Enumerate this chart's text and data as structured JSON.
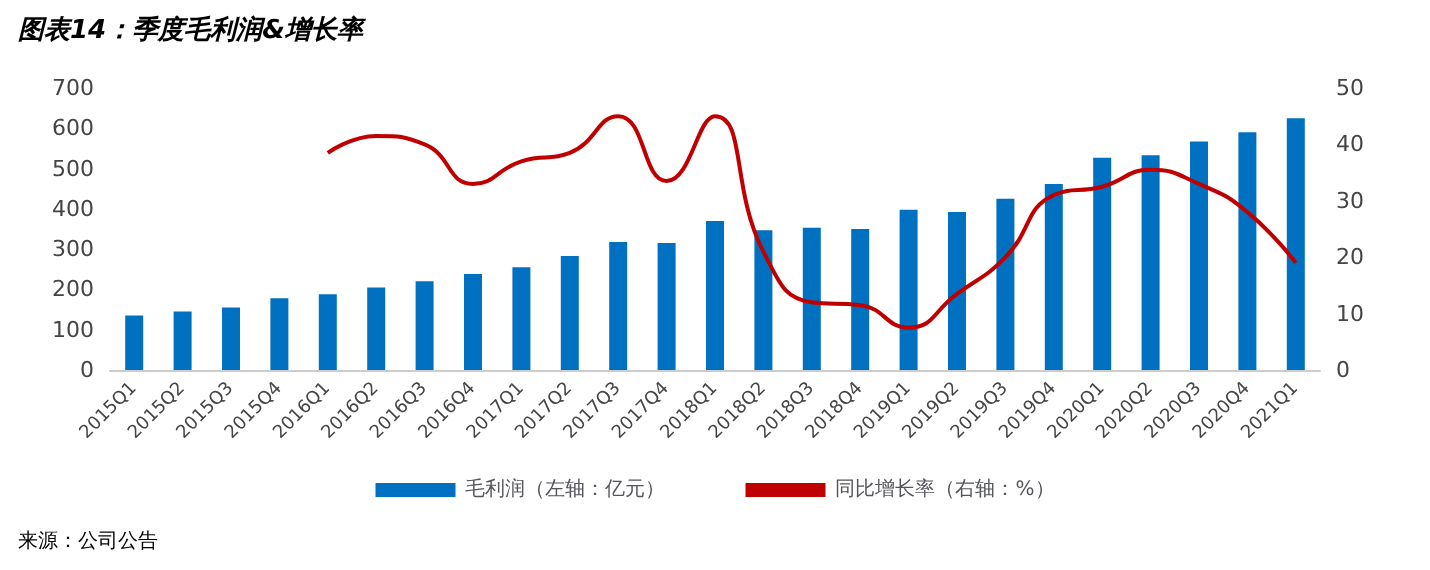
{
  "chart_data": {
    "type": "bar",
    "title": "图表14：季度毛利润&增长率",
    "categories": [
      "2015Q1",
      "2015Q2",
      "2015Q3",
      "2015Q4",
      "2016Q1",
      "2016Q2",
      "2016Q3",
      "2016Q4",
      "2017Q1",
      "2017Q2",
      "2017Q3",
      "2017Q4",
      "2018Q1",
      "2018Q2",
      "2018Q3",
      "2018Q4",
      "2019Q1",
      "2019Q2",
      "2019Q3",
      "2019Q4",
      "2020Q1",
      "2020Q2",
      "2020Q3",
      "2020Q4",
      "2021Q1"
    ],
    "series": [
      {
        "name": "毛利润（左轴：亿元）",
        "color": "#0070c0",
        "values": [
          135,
          145,
          155,
          178,
          188,
          205,
          220,
          238,
          255,
          283,
          318,
          315,
          370,
          347,
          353,
          350,
          398,
          392,
          425,
          462,
          527,
          533,
          567,
          590,
          625
        ]
      },
      {
        "name": "同比增长率（右轴：%）",
        "type": "line",
        "axis": "y2",
        "color": "#c00000",
        "values": [
          null,
          null,
          null,
          null,
          38.5,
          41.5,
          40,
          33,
          37,
          38.5,
          45,
          33.5,
          45,
          21,
          12,
          11.5,
          7.5,
          13.5,
          20,
          31,
          32.5,
          35.5,
          33,
          28,
          19
        ]
      }
    ],
    "ylim": [
      0,
      700
    ],
    "yticks": [
      0,
      100,
      200,
      300,
      400,
      500,
      600,
      700
    ],
    "y2lim": [
      0,
      50
    ],
    "y2ticks": [
      0,
      10,
      20,
      30,
      40,
      50
    ],
    "grid": false,
    "legend": "bottom",
    "marker": "none",
    "annotations": [
      "来源：公司公告"
    ]
  }
}
